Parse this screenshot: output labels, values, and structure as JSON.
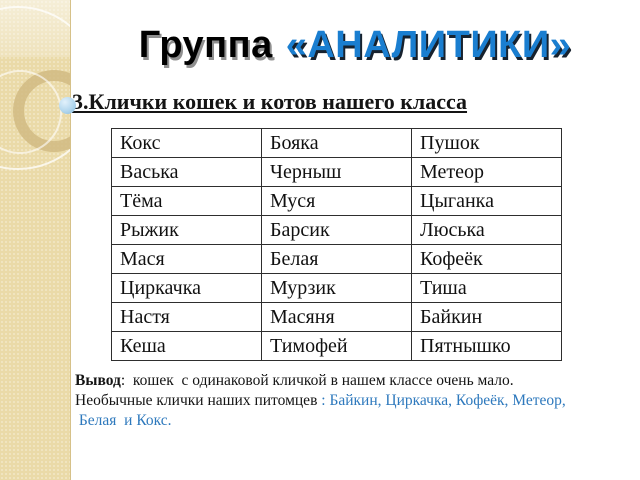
{
  "slide": {
    "title": {
      "word": "Группа",
      "group_name": "«АНАЛИТИКИ»"
    },
    "subtitle": "3.Клички кошек и котов нашего класса"
  },
  "table": {
    "rows": [
      [
        "Кокс",
        "Бояка",
        "Пушок"
      ],
      [
        "Васька",
        "Черныш",
        "Метеор"
      ],
      [
        "Тёма",
        "Муся",
        "Цыганка"
      ],
      [
        "Рыжик",
        "Барсик",
        "Люська"
      ],
      [
        "Мася",
        "Белая",
        "Кофеёк"
      ],
      [
        "Циркачка",
        "Мурзик",
        "Тиша"
      ],
      [
        "Настя",
        "Масяня",
        "Байкин"
      ],
      [
        "Кеша",
        "Тимофей",
        "Пятнышко"
      ]
    ]
  },
  "conclusion": {
    "label": "Вывод",
    "line1_rest": ":  кошек  с одинаковой кличкой в нашем классе очень мало.",
    "line2_black": "Необычные клички наших питомцев ",
    "line2_blue": ": Байкин, Циркачка, Кофеёк, Метеор,",
    "line3_blue": " Белая  и Кокс."
  },
  "colors": {
    "title_accent_blue": "#1a7ed0",
    "conclusion_blue": "#2e79bd",
    "strip_beige": "#eadaa8"
  }
}
